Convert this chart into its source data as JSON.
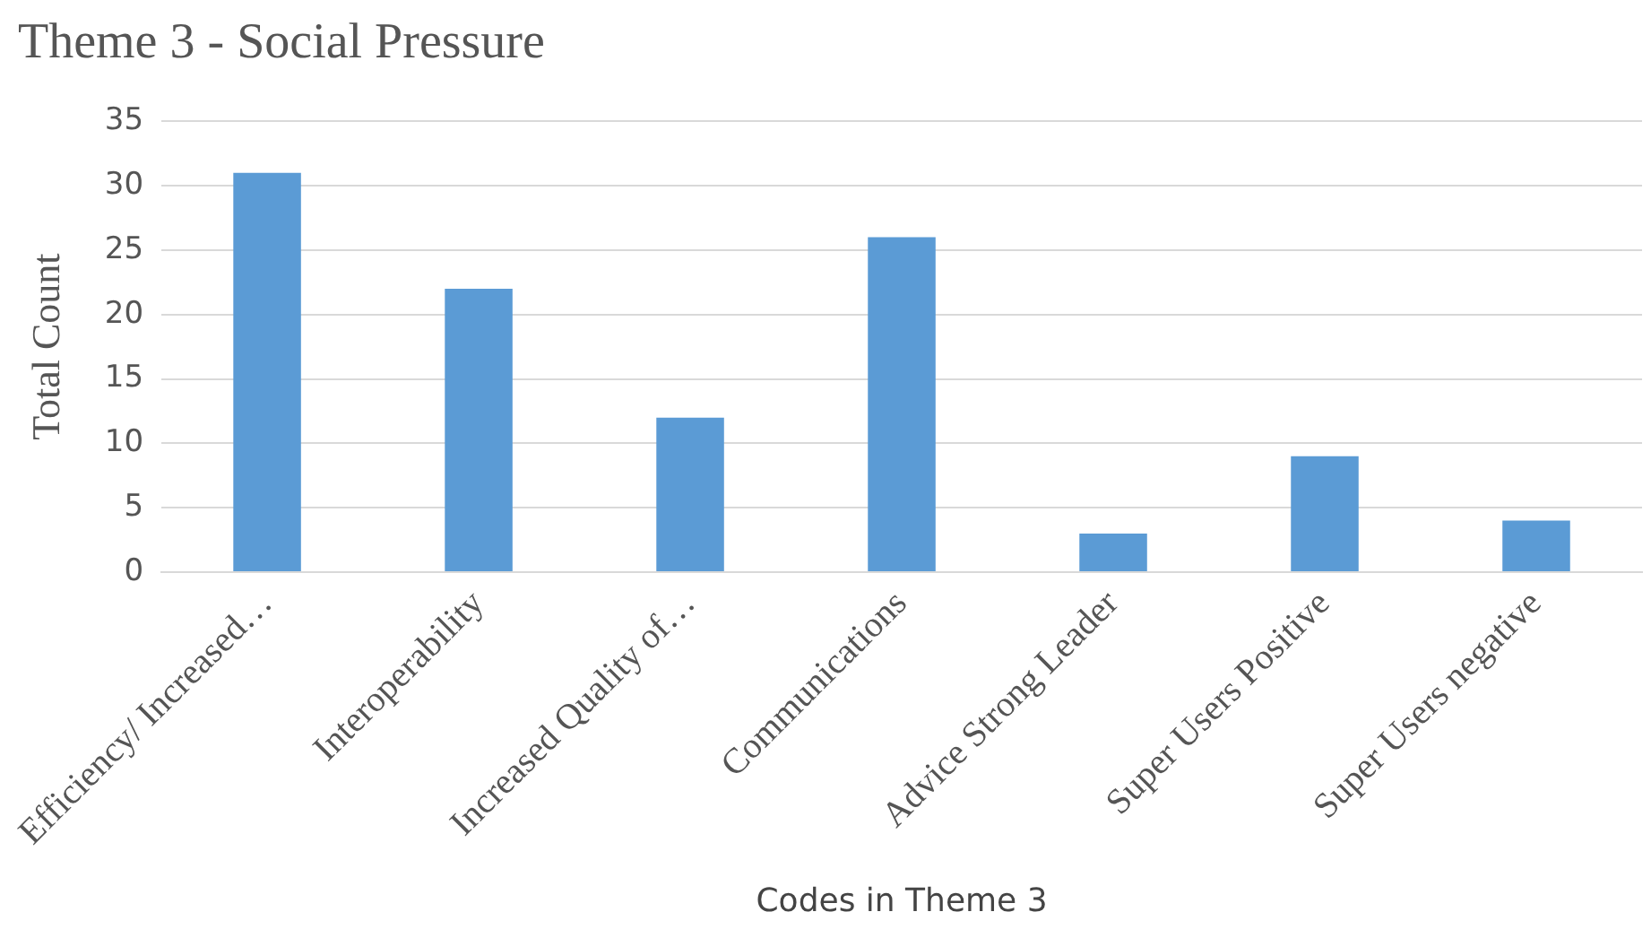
{
  "chart_data": {
    "type": "bar",
    "title": "Theme 3 - Social Pressure",
    "xlabel": "Codes in Theme 3",
    "ylabel": "Total Count",
    "categories": [
      "Efficiency/ Increased…",
      "Interoperability",
      "Increased Quality of…",
      "Communications",
      "Advice Strong Leader",
      "Super Users Positive",
      "Super Users negative"
    ],
    "values": [
      31,
      22,
      12,
      26,
      3,
      9,
      4
    ],
    "color": "#5b9bd5",
    "ylim": [
      0,
      35
    ],
    "yticks": [
      0,
      5,
      10,
      15,
      20,
      25,
      30,
      35
    ],
    "grid": "y",
    "legend": false
  }
}
